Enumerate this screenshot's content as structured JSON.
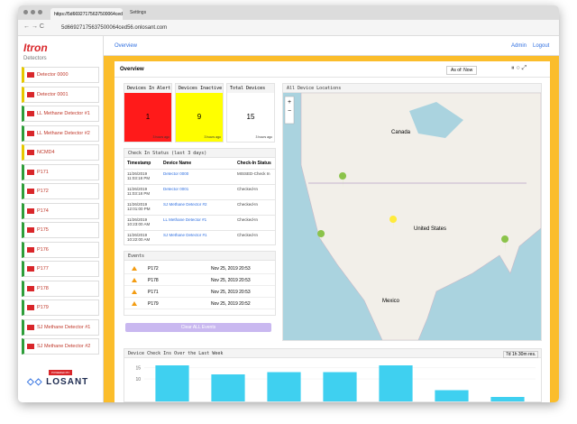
{
  "browser": {
    "tabs": [
      "https://5d66927175637500064ced56.onlosant.com",
      "Settings"
    ],
    "url": "5d66927175637500064ced56.onlosant.com"
  },
  "header": {
    "nav": "Overview",
    "links": [
      "Admin",
      "Logout"
    ]
  },
  "sidebar": {
    "logo": "Itron",
    "section": "Detectors",
    "items": [
      {
        "name": "Detector 0000",
        "color": "#e6c800"
      },
      {
        "name": "Detector 0001",
        "color": "#e6c800"
      },
      {
        "name": "LL Methane Detector #1",
        "color": "#2e9e3a"
      },
      {
        "name": "LL Methane Detector #2",
        "color": "#2e9e3a"
      },
      {
        "name": "NCMD4",
        "color": "#e6c800"
      },
      {
        "name": "P171",
        "color": "#2e9e3a"
      },
      {
        "name": "P172",
        "color": "#2e9e3a"
      },
      {
        "name": "P174",
        "color": "#2e9e3a"
      },
      {
        "name": "P175",
        "color": "#2e9e3a"
      },
      {
        "name": "P176",
        "color": "#2e9e3a"
      },
      {
        "name": "P177",
        "color": "#2e9e3a"
      },
      {
        "name": "P178",
        "color": "#2e9e3a"
      },
      {
        "name": "P179",
        "color": "#2e9e3a"
      },
      {
        "name": "SJ Methane Detector #1",
        "color": "#2e9e3a"
      },
      {
        "name": "SJ Methane Detector #2",
        "color": "#2e9e3a"
      }
    ],
    "powered_by": "POWERED BY",
    "brand": "LOSANT"
  },
  "dashboard": {
    "title": "Overview",
    "as_of": "As of: Now",
    "stats": [
      {
        "title": "Devices In Alert",
        "value": 1,
        "time": "3 hours ago",
        "color": "#ff1a1a"
      },
      {
        "title": "Devices Inactive",
        "value": 9,
        "time": "3 hours ago",
        "color": "#ffff00"
      },
      {
        "title": "Total Devices",
        "value": 15,
        "time": "3 hours ago",
        "color": "#ffffff"
      }
    ],
    "check_in": {
      "title": "Check In Status (last 3 days)",
      "columns": [
        "Timestamp",
        "Device Name",
        "Check-In Status"
      ],
      "rows": [
        [
          "11/26/2019 11:03:18 PM",
          "Detector 0000",
          "MISSED-Check In"
        ],
        [
          "11/26/2019 11:03:18 PM",
          "Detector 0001",
          "Checked-In"
        ],
        [
          "11/26/2019 12:01:00 PM",
          "SJ Methane Detector #2",
          "Checked-In"
        ],
        [
          "11/26/2019 10:23:00 AM",
          "LL Methane Detector #1",
          "Checked-In"
        ],
        [
          "11/26/2019 10:22:00 AM",
          "SJ Methane Detector #1",
          "Checked-In"
        ]
      ]
    },
    "events": {
      "title": "Events",
      "rows": [
        [
          "P172",
          "Nov 25, 2019 20:53"
        ],
        [
          "P178",
          "Nov 25, 2019 20:53"
        ],
        [
          "P171",
          "Nov 25, 2019 20:53"
        ],
        [
          "P179",
          "Nov 25, 2019 20:52"
        ]
      ],
      "button": "Clear ALL Events"
    },
    "map": {
      "title": "All Device Locations",
      "labels": [
        "Canada",
        "United States",
        "Mexico"
      ]
    },
    "chart": {
      "title": "Device Check Ins Over the Last Week",
      "resolution": "7d 1h 30m res.",
      "color": "#3fd0f0",
      "values": [
        16,
        12,
        13,
        13,
        16,
        5,
        2
      ],
      "ylim": [
        0,
        18
      ],
      "yticks": [
        10,
        15
      ]
    }
  }
}
